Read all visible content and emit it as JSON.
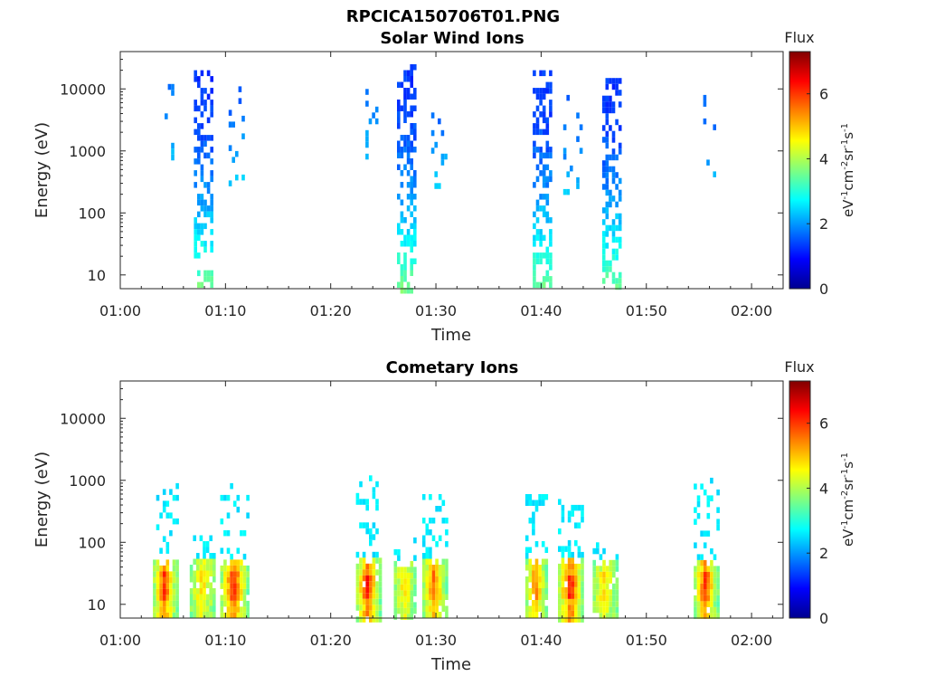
{
  "figure_title": "RPCICA150706T01.PNG",
  "chart_data": [
    {
      "type": "heatmap",
      "title": "Solar Wind Ions",
      "xlabel": "Time",
      "ylabel": "Energy (eV)",
      "x_ticks": [
        "01:00",
        "01:10",
        "01:20",
        "01:30",
        "01:40",
        "01:50",
        "02:00"
      ],
      "x_range_minutes": [
        0,
        63
      ],
      "y_scale": "log",
      "y_ticks": [
        "10",
        "100",
        "1000",
        "10000"
      ],
      "ylim": [
        6,
        40000
      ],
      "colorbar": {
        "label": "Flux",
        "units": "eV^-1 cm^-2 sr^-1 s^-1",
        "ticks": [
          "0",
          "2",
          "4",
          "6"
        ],
        "range": [
          0,
          7.3
        ],
        "colormap": "jet"
      },
      "bursts": [
        {
          "t_center_min": 4.5,
          "width_min": 1.2,
          "e_low": 500,
          "e_high": 12000,
          "flux_low": 1.8,
          "flux_high": 2.6,
          "density": 0.18
        },
        {
          "t_center_min": 7.8,
          "width_min": 1.6,
          "e_low": 6,
          "e_high": 20000,
          "flux_low": 1.3,
          "flux_high": 3.6,
          "density": 0.55
        },
        {
          "t_center_min": 11.0,
          "width_min": 1.4,
          "e_low": 300,
          "e_high": 11000,
          "flux_low": 1.7,
          "flux_high": 2.4,
          "density": 0.18
        },
        {
          "t_center_min": 23.8,
          "width_min": 1.0,
          "e_low": 600,
          "e_high": 10000,
          "flux_low": 1.8,
          "flux_high": 2.6,
          "density": 0.15
        },
        {
          "t_center_min": 27.2,
          "width_min": 1.8,
          "e_low": 6,
          "e_high": 25000,
          "flux_low": 1.3,
          "flux_high": 3.6,
          "density": 0.55
        },
        {
          "t_center_min": 30.2,
          "width_min": 1.3,
          "e_low": 300,
          "e_high": 10000,
          "flux_low": 1.7,
          "flux_high": 2.4,
          "density": 0.18
        },
        {
          "t_center_min": 40.0,
          "width_min": 1.6,
          "e_low": 6,
          "e_high": 20000,
          "flux_low": 1.3,
          "flux_high": 3.6,
          "density": 0.55
        },
        {
          "t_center_min": 43.0,
          "width_min": 1.8,
          "e_low": 200,
          "e_high": 8000,
          "flux_low": 1.7,
          "flux_high": 2.4,
          "density": 0.18
        },
        {
          "t_center_min": 46.6,
          "width_min": 1.6,
          "e_low": 6,
          "e_high": 15000,
          "flux_low": 1.3,
          "flux_high": 3.6,
          "density": 0.5
        },
        {
          "t_center_min": 56.0,
          "width_min": 1.2,
          "e_low": 400,
          "e_high": 8000,
          "flux_low": 1.7,
          "flux_high": 2.4,
          "density": 0.2
        }
      ]
    },
    {
      "type": "heatmap",
      "title": "Cometary Ions",
      "xlabel": "Time",
      "ylabel": "Energy (eV)",
      "x_ticks": [
        "01:00",
        "01:10",
        "01:20",
        "01:30",
        "01:40",
        "01:50",
        "02:00"
      ],
      "x_range_minutes": [
        0,
        63
      ],
      "y_scale": "log",
      "y_ticks": [
        "10",
        "100",
        "1000",
        "10000"
      ],
      "ylim": [
        6,
        40000
      ],
      "colorbar": {
        "label": "Flux",
        "units": "eV^-1 cm^-2 sr^-1 s^-1",
        "ticks": [
          "0",
          "2",
          "4",
          "6"
        ],
        "range": [
          0,
          7.3
        ],
        "colormap": "jet"
      },
      "bursts": [
        {
          "t_center_min": 4.2,
          "width_min": 2.2,
          "e_low": 6,
          "e_high": 900,
          "peak": 6.0
        },
        {
          "t_center_min": 7.8,
          "width_min": 2.4,
          "e_low": 6,
          "e_high": 130,
          "peak": 4.8
        },
        {
          "t_center_min": 10.8,
          "width_min": 2.6,
          "e_low": 6,
          "e_high": 900,
          "peak": 6.0
        },
        {
          "t_center_min": 23.5,
          "width_min": 2.2,
          "e_low": 6,
          "e_high": 1200,
          "peak": 6.2
        },
        {
          "t_center_min": 27.0,
          "width_min": 2.0,
          "e_low": 6,
          "e_high": 120,
          "peak": 4.8
        },
        {
          "t_center_min": 29.8,
          "width_min": 2.2,
          "e_low": 6,
          "e_high": 600,
          "peak": 5.6
        },
        {
          "t_center_min": 39.5,
          "width_min": 2.0,
          "e_low": 6,
          "e_high": 600,
          "peak": 5.4
        },
        {
          "t_center_min": 42.8,
          "width_min": 2.4,
          "e_low": 6,
          "e_high": 500,
          "peak": 6.3
        },
        {
          "t_center_min": 46.0,
          "width_min": 2.2,
          "e_low": 6,
          "e_high": 100,
          "peak": 4.8
        },
        {
          "t_center_min": 55.6,
          "width_min": 2.2,
          "e_low": 6,
          "e_high": 1100,
          "peak": 6.0
        }
      ]
    }
  ]
}
